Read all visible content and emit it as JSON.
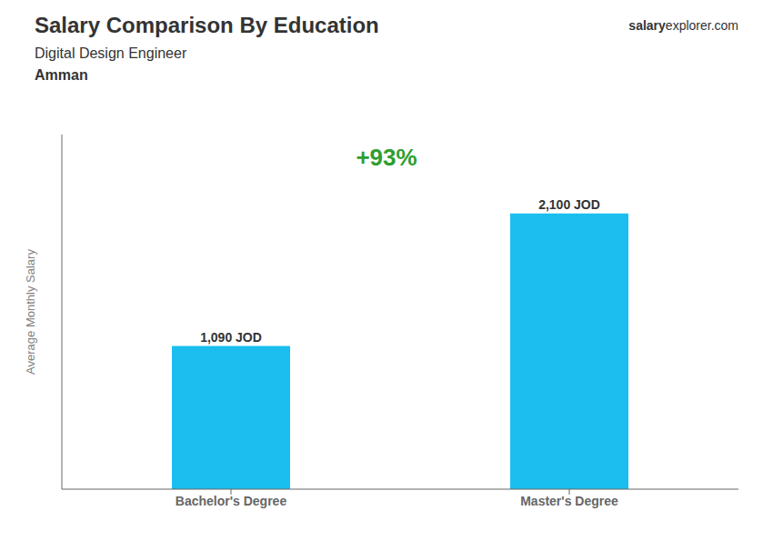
{
  "chart_data": {
    "type": "bar",
    "title": "Salary Comparison By Education",
    "subtitle": [
      "Digital Design Engineer",
      "Amman"
    ],
    "annotations": [
      "salary",
      "explorer.com",
      "+93%"
    ],
    "ylabel": "Average Monthly Salary",
    "categories": [
      "Bachelor's Degree",
      "Master's Degree"
    ],
    "values": [
      1090,
      2100
    ],
    "value_labels": [
      "1,090 JOD",
      "2,100 JOD"
    ],
    "data_labels": true,
    "color": "#1ABFEF",
    "ylim": [
      0,
      2700
    ],
    "tick_labels": "x",
    "grid": false
  }
}
